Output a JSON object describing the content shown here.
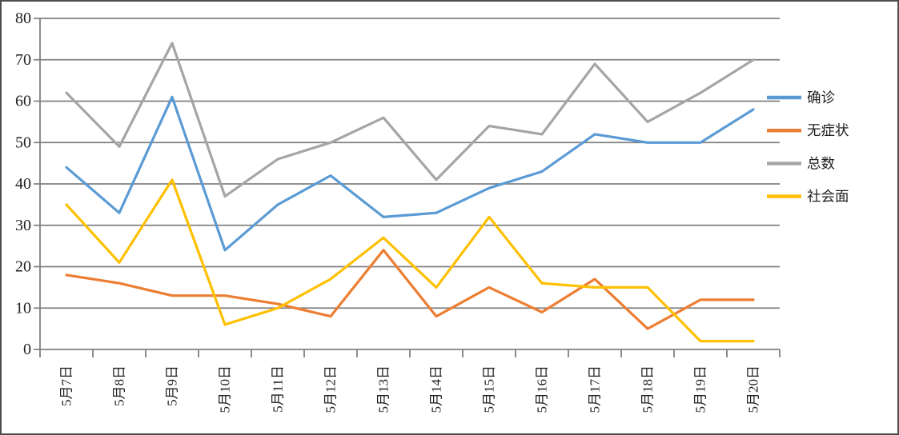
{
  "chart_data": {
    "type": "line",
    "title": "",
    "xlabel": "",
    "ylabel": "",
    "categories": [
      "5月7日",
      "5月8日",
      "5月9日",
      "5月10日",
      "5月11日",
      "5月12日",
      "5月13日",
      "5月14日",
      "5月15日",
      "5月16日",
      "5月17日",
      "5月18日",
      "5月19日",
      "5月20日"
    ],
    "series": [
      {
        "name": "确诊",
        "color": "#5B9BD5",
        "values": [
          44,
          33,
          61,
          24,
          35,
          42,
          32,
          33,
          39,
          43,
          52,
          50,
          50,
          58
        ]
      },
      {
        "name": "无症状",
        "color": "#ED7D31",
        "values": [
          18,
          16,
          13,
          13,
          11,
          8,
          24,
          8,
          15,
          9,
          17,
          5,
          12,
          12
        ]
      },
      {
        "name": "总数",
        "color": "#A5A5A5",
        "values": [
          62,
          49,
          74,
          37,
          46,
          50,
          56,
          41,
          54,
          52,
          69,
          55,
          62,
          70
        ]
      },
      {
        "name": "社会面",
        "color": "#FFC000",
        "values": [
          35,
          21,
          41,
          6,
          10,
          17,
          27,
          15,
          32,
          16,
          15,
          15,
          2,
          2
        ]
      }
    ],
    "y_axis": {
      "min": 0,
      "max": 80,
      "step": 10,
      "ticks": [
        "0",
        "10",
        "20",
        "30",
        "40",
        "50",
        "60",
        "70",
        "80"
      ]
    },
    "legend": [
      "确诊",
      "无症状",
      "总数",
      "社会面"
    ],
    "legend_position": "right",
    "grid": true
  },
  "colors": {
    "background": "#FFFFFF",
    "gridline": "#808080",
    "axis": "#808080",
    "border": "#4D4D4D",
    "text": "#1F1F1F"
  }
}
